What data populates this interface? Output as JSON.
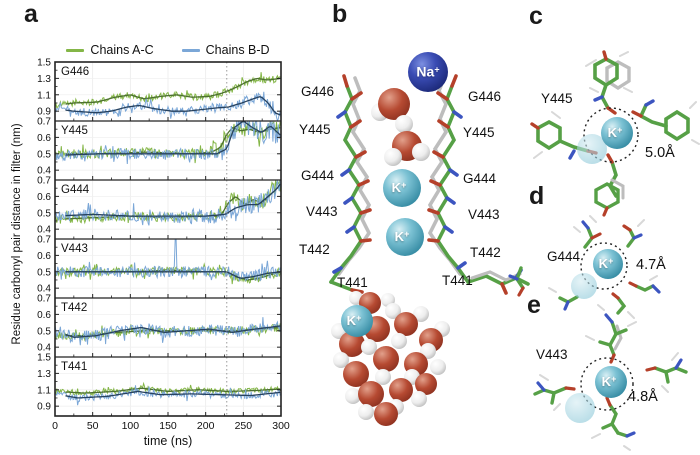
{
  "panels": {
    "a": "a",
    "b": "b",
    "c": "c",
    "d": "d",
    "e": "e"
  },
  "colors": {
    "chain_green": "#56a046",
    "ghost_gray": "#bdbdbd",
    "oxygen_red": "#b5402a",
    "nitrogen_blue": "#3c55c0",
    "k_ion": "#5fb7cc",
    "na_ion": "#2e3da8",
    "event_line": "#999999"
  },
  "chart_data": {
    "type": "line",
    "xlabel": "time (ns)",
    "ylabel": "Residue carbonyl pair distance in filter (nm)",
    "x_range": [
      0,
      300
    ],
    "xticks": [
      0,
      50,
      100,
      150,
      200,
      250,
      300
    ],
    "event_line_x": 228,
    "legend": [
      {
        "name": "Chains A-C",
        "color": "#84b647",
        "avg_color": "#4c7030"
      },
      {
        "name": "Chains B-D",
        "color": "#7ba7d7",
        "avg_color": "#27425f"
      }
    ],
    "subplots": [
      {
        "label": "G446",
        "ylim": [
          0.78,
          1.5
        ],
        "yticks": [
          0.9,
          1.1,
          1.3,
          1.5
        ],
        "green": {
          "trend": [
            [
              0,
              0.97
            ],
            [
              25,
              1.0
            ],
            [
              55,
              1.01
            ],
            [
              80,
              1.07
            ],
            [
              100,
              1.1
            ],
            [
              118,
              1.05
            ],
            [
              140,
              1.08
            ],
            [
              162,
              1.1
            ],
            [
              182,
              1.07
            ],
            [
              205,
              1.08
            ],
            [
              222,
              1.12
            ],
            [
              238,
              1.18
            ],
            [
              255,
              1.26
            ],
            [
              268,
              1.3
            ],
            [
              282,
              1.28
            ],
            [
              300,
              1.3
            ]
          ],
          "noise": [
            [
              0,
              0.035
            ],
            [
              300,
              0.045
            ]
          ]
        },
        "blue": {
          "trend": [
            [
              0,
              0.93
            ],
            [
              25,
              0.9
            ],
            [
              55,
              0.88
            ],
            [
              75,
              0.9
            ],
            [
              95,
              0.95
            ],
            [
              112,
              0.97
            ],
            [
              132,
              0.93
            ],
            [
              155,
              0.9
            ],
            [
              175,
              0.9
            ],
            [
              195,
              0.92
            ],
            [
              215,
              0.94
            ],
            [
              230,
              0.95
            ],
            [
              248,
              1.0
            ],
            [
              263,
              1.05
            ],
            [
              273,
              1.08
            ],
            [
              283,
              1.0
            ],
            [
              292,
              0.88
            ],
            [
              300,
              0.85
            ]
          ],
          "noise": [
            [
              0,
              0.05
            ],
            [
              240,
              0.055
            ],
            [
              270,
              0.07
            ],
            [
              300,
              0.09
            ]
          ]
        }
      },
      {
        "label": "Y445",
        "ylim": [
          0.34,
          0.7
        ],
        "yticks": [
          0.4,
          0.5,
          0.6,
          0.7
        ],
        "green": {
          "trend": [
            [
              0,
              0.5
            ],
            [
              60,
              0.5
            ],
            [
              120,
              0.51
            ],
            [
              180,
              0.5
            ],
            [
              208,
              0.51
            ],
            [
              220,
              0.54
            ],
            [
              228,
              0.62
            ],
            [
              236,
              0.66
            ],
            [
              246,
              0.64
            ],
            [
              258,
              0.65
            ],
            [
              272,
              0.63
            ],
            [
              285,
              0.65
            ],
            [
              300,
              0.66
            ]
          ],
          "noise": [
            [
              0,
              0.028
            ],
            [
              195,
              0.03
            ],
            [
              215,
              0.055
            ],
            [
              240,
              0.045
            ],
            [
              300,
              0.045
            ]
          ]
        },
        "blue": {
          "trend": [
            [
              0,
              0.49
            ],
            [
              60,
              0.5
            ],
            [
              120,
              0.5
            ],
            [
              180,
              0.5
            ],
            [
              215,
              0.5
            ],
            [
              228,
              0.53
            ],
            [
              238,
              0.66
            ],
            [
              250,
              0.7
            ],
            [
              262,
              0.66
            ],
            [
              274,
              0.63
            ],
            [
              286,
              0.67
            ],
            [
              300,
              0.61
            ]
          ],
          "noise": [
            [
              0,
              0.03
            ],
            [
              225,
              0.035
            ],
            [
              238,
              0.08
            ],
            [
              300,
              0.085
            ]
          ]
        }
      },
      {
        "label": "G444",
        "ylim": [
          0.34,
          0.7
        ],
        "yticks": [
          0.4,
          0.5,
          0.6,
          0.7
        ],
        "green": {
          "trend": [
            [
              0,
              0.46
            ],
            [
              50,
              0.47
            ],
            [
              100,
              0.48
            ],
            [
              150,
              0.47
            ],
            [
              200,
              0.48
            ],
            [
              220,
              0.48
            ],
            [
              230,
              0.56
            ],
            [
              240,
              0.6
            ],
            [
              252,
              0.55
            ],
            [
              263,
              0.58
            ],
            [
              275,
              0.56
            ],
            [
              288,
              0.62
            ],
            [
              300,
              0.67
            ]
          ],
          "noise": [
            [
              0,
              0.028
            ],
            [
              218,
              0.028
            ],
            [
              232,
              0.065
            ],
            [
              260,
              0.05
            ],
            [
              300,
              0.05
            ]
          ]
        },
        "blue": {
          "trend": [
            [
              0,
              0.48
            ],
            [
              50,
              0.49
            ],
            [
              100,
              0.48
            ],
            [
              150,
              0.48
            ],
            [
              200,
              0.48
            ],
            [
              226,
              0.49
            ],
            [
              240,
              0.53
            ],
            [
              256,
              0.55
            ],
            [
              270,
              0.55
            ],
            [
              283,
              0.6
            ],
            [
              293,
              0.64
            ],
            [
              300,
              0.68
            ]
          ],
          "noise": [
            [
              0,
              0.033
            ],
            [
              228,
              0.05
            ],
            [
              300,
              0.06
            ]
          ]
        }
      },
      {
        "label": "V443",
        "ylim": [
          0.34,
          0.7
        ],
        "yticks": [
          0.4,
          0.5,
          0.6,
          0.7
        ],
        "green": {
          "trend": [
            [
              0,
              0.5
            ],
            [
              50,
              0.5
            ],
            [
              100,
              0.5
            ],
            [
              150,
              0.51
            ],
            [
              200,
              0.5
            ],
            [
              226,
              0.5
            ],
            [
              240,
              0.47
            ],
            [
              256,
              0.45
            ],
            [
              270,
              0.46
            ],
            [
              285,
              0.48
            ],
            [
              300,
              0.5
            ]
          ],
          "noise": [
            [
              0,
              0.024
            ],
            [
              300,
              0.028
            ]
          ]
        },
        "blue": {
          "trend": [
            [
              0,
              0.5
            ],
            [
              50,
              0.5
            ],
            [
              100,
              0.5
            ],
            [
              152,
              0.5
            ],
            [
              200,
              0.5
            ],
            [
              228,
              0.5
            ],
            [
              246,
              0.46
            ],
            [
              263,
              0.47
            ],
            [
              281,
              0.49
            ],
            [
              300,
              0.5
            ]
          ],
          "noise": [
            [
              0,
              0.032
            ],
            [
              300,
              0.038
            ]
          ],
          "spikes": [
            [
              160,
              0.75
            ]
          ]
        }
      },
      {
        "label": "T442",
        "ylim": [
          0.34,
          0.7
        ],
        "yticks": [
          0.4,
          0.5,
          0.6,
          0.7
        ],
        "green": {
          "trend": [
            [
              0,
              0.47
            ],
            [
              40,
              0.47
            ],
            [
              80,
              0.49
            ],
            [
              120,
              0.5
            ],
            [
              160,
              0.5
            ],
            [
              200,
              0.5
            ],
            [
              240,
              0.5
            ],
            [
              270,
              0.51
            ],
            [
              300,
              0.52
            ]
          ],
          "noise": [
            [
              0,
              0.024
            ],
            [
              300,
              0.026
            ]
          ]
        },
        "blue": {
          "trend": [
            [
              0,
              0.5
            ],
            [
              25,
              0.46
            ],
            [
              55,
              0.47
            ],
            [
              85,
              0.5
            ],
            [
              115,
              0.52
            ],
            [
              145,
              0.49
            ],
            [
              175,
              0.5
            ],
            [
              205,
              0.51
            ],
            [
              235,
              0.49
            ],
            [
              265,
              0.51
            ],
            [
              300,
              0.53
            ]
          ],
          "noise": [
            [
              0,
              0.038
            ],
            [
              300,
              0.034
            ]
          ]
        }
      },
      {
        "label": "T441",
        "ylim": [
          0.78,
          1.5
        ],
        "yticks": [
          0.9,
          1.1,
          1.3,
          1.5
        ],
        "green": {
          "trend": [
            [
              0,
              1.08
            ],
            [
              40,
              1.06
            ],
            [
              80,
              1.08
            ],
            [
              115,
              1.12
            ],
            [
              150,
              1.08
            ],
            [
              190,
              1.1
            ],
            [
              230,
              1.08
            ],
            [
              265,
              1.09
            ],
            [
              300,
              1.11
            ]
          ],
          "noise": [
            [
              0,
              0.03
            ],
            [
              300,
              0.032
            ]
          ]
        },
        "blue": {
          "trend": [
            [
              0,
              1.05
            ],
            [
              30,
              1.0
            ],
            [
              70,
              1.02
            ],
            [
              110,
              1.08
            ],
            [
              140,
              1.04
            ],
            [
              180,
              1.05
            ],
            [
              220,
              1.04
            ],
            [
              260,
              1.03
            ],
            [
              300,
              1.07
            ]
          ],
          "noise": [
            [
              0,
              0.042
            ],
            [
              300,
              0.045
            ]
          ]
        }
      }
    ]
  },
  "panel_b": {
    "ion_top": {
      "symbol": "Na",
      "charge": "+"
    },
    "ion_filter_1": {
      "symbol": "K",
      "charge": "+"
    },
    "ion_filter_2": {
      "symbol": "K",
      "charge": "+"
    },
    "ion_cluster": {
      "symbol": "K",
      "charge": "+"
    },
    "residues_left": [
      "G446",
      "Y445",
      "G444",
      "V443",
      "T442",
      "T441"
    ],
    "residues_right": [
      "G446",
      "Y445",
      "G444",
      "V443",
      "T442",
      "T441"
    ]
  },
  "panel_c": {
    "residue": "Y445",
    "distance": "5.0Å",
    "ion": {
      "symbol": "K",
      "charge": "+"
    }
  },
  "panel_d": {
    "residue": "G444",
    "distance": "4.7Å",
    "ion": {
      "symbol": "K",
      "charge": "+"
    }
  },
  "panel_e": {
    "residue": "V443",
    "distance": "4.8Å",
    "ion": {
      "symbol": "K",
      "charge": "+"
    }
  }
}
